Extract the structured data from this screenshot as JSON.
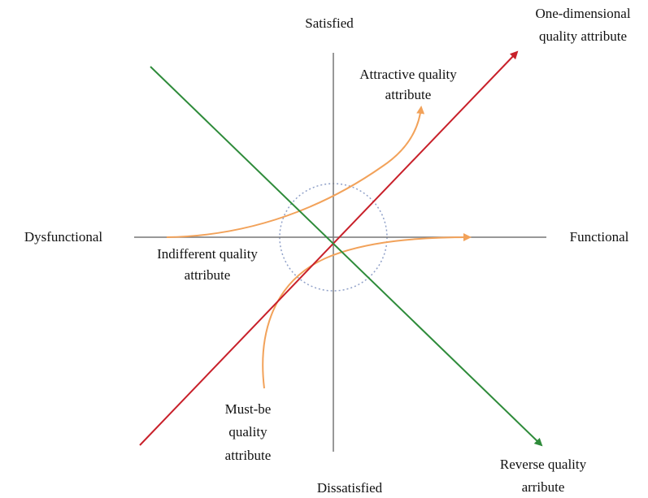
{
  "axes": {
    "top": "Satisfied",
    "bottom": "Dissatisfied",
    "left": "Dysfunctional",
    "right": "Functional"
  },
  "curves": {
    "one_dimensional": [
      "One-dimensional",
      "quality attribute"
    ],
    "attractive": [
      "Attractive quality",
      "attribute"
    ],
    "indifferent": [
      "Indifferent quality",
      "attribute"
    ],
    "must_be": [
      "Must-be",
      "quality",
      "attribute"
    ],
    "reverse": [
      "Reverse quality",
      "arribute"
    ]
  }
}
